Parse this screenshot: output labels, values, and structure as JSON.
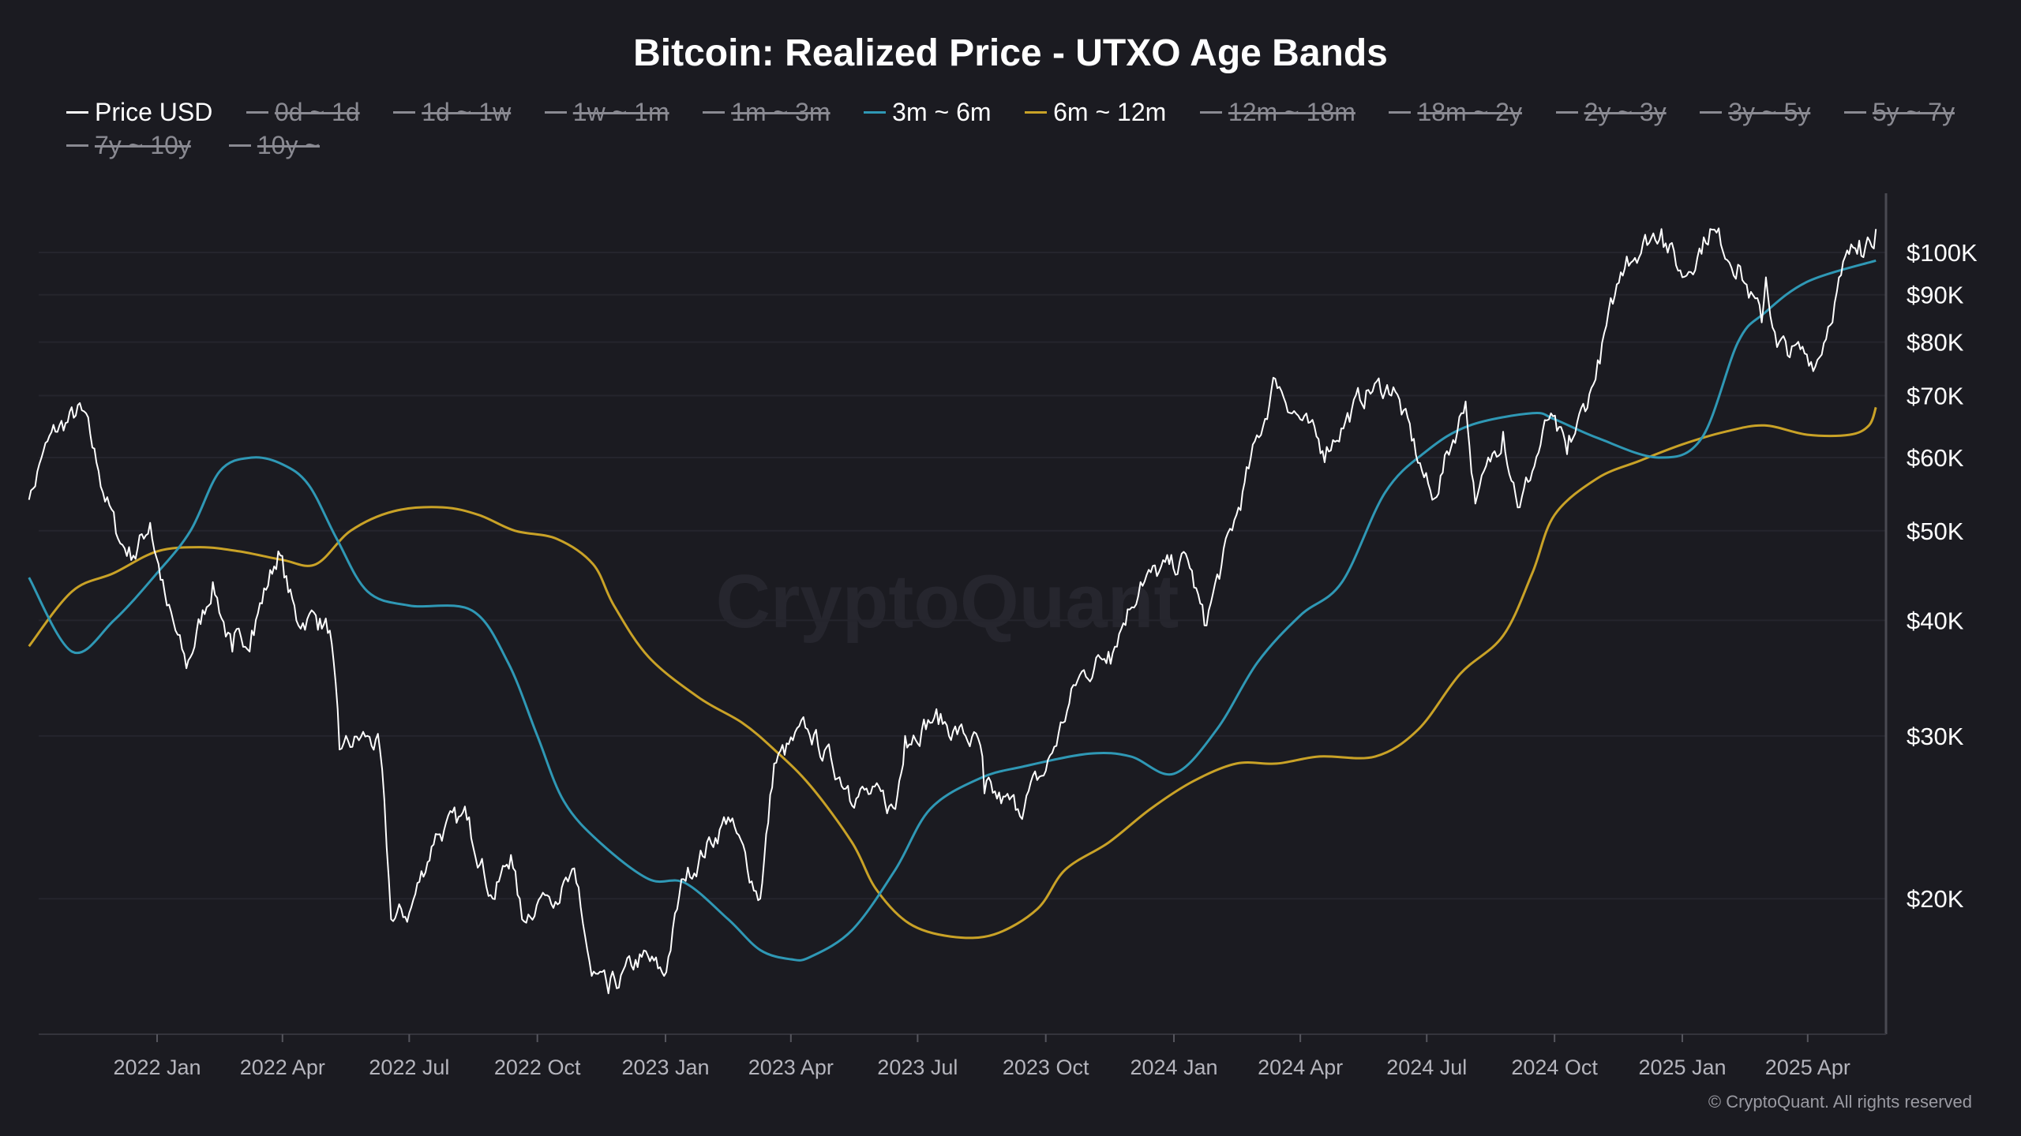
{
  "title": "Bitcoin: Realized Price - UTXO Age Bands",
  "legend": [
    {
      "label": "Price USD",
      "active": true,
      "color": "#ffffff"
    },
    {
      "label": "0d ~ 1d",
      "active": false
    },
    {
      "label": "1d ~ 1w",
      "active": false
    },
    {
      "label": "1w ~ 1m",
      "active": false
    },
    {
      "label": "1m ~ 3m",
      "active": false
    },
    {
      "label": "3m ~ 6m",
      "active": true,
      "color": "#2f98b5"
    },
    {
      "label": "6m ~ 12m",
      "active": true,
      "color": "#c9a227"
    },
    {
      "label": "12m ~ 18m",
      "active": false
    },
    {
      "label": "18m ~ 2y",
      "active": false
    },
    {
      "label": "2y ~ 3y",
      "active": false
    },
    {
      "label": "3y ~ 5y",
      "active": false
    },
    {
      "label": "5y ~ 7y",
      "active": false
    },
    {
      "label": "7y ~ 10y",
      "active": false
    },
    {
      "label": "10y ~",
      "active": false
    }
  ],
  "watermark": "CryptoQuant",
  "copyright": "© CryptoQuant. All rights reserved",
  "chart_data": {
    "type": "line",
    "title": "Bitcoin: Realized Price - UTXO Age Bands",
    "y_scale": "log",
    "ylim": [
      14300,
      116000
    ],
    "xlim": [
      "2021-10-01",
      "2025-05-20"
    ],
    "grid": true,
    "legend_position": "top",
    "y_ticks": [
      {
        "value": 100000,
        "label": "$100K"
      },
      {
        "value": 90000,
        "label": "$90K"
      },
      {
        "value": 80000,
        "label": "$80K"
      },
      {
        "value": 70000,
        "label": "$70K"
      },
      {
        "value": 60000,
        "label": "$60K"
      },
      {
        "value": 50000,
        "label": "$50K"
      },
      {
        "value": 40000,
        "label": "$40K"
      },
      {
        "value": 30000,
        "label": "$30K"
      },
      {
        "value": 20000,
        "label": "$20K"
      }
    ],
    "x_ticks": [
      {
        "date": "2022-01-01",
        "label": "2022 Jan"
      },
      {
        "date": "2022-04-01",
        "label": "2022 Apr"
      },
      {
        "date": "2022-07-01",
        "label": "2022 Jul"
      },
      {
        "date": "2022-10-01",
        "label": "2022 Oct"
      },
      {
        "date": "2023-01-01",
        "label": "2023 Jan"
      },
      {
        "date": "2023-04-01",
        "label": "2023 Apr"
      },
      {
        "date": "2023-07-01",
        "label": "2023 Jul"
      },
      {
        "date": "2023-10-01",
        "label": "2023 Oct"
      },
      {
        "date": "2024-01-01",
        "label": "2024 Jan"
      },
      {
        "date": "2024-04-01",
        "label": "2024 Apr"
      },
      {
        "date": "2024-07-01",
        "label": "2024 Jul"
      },
      {
        "date": "2024-10-01",
        "label": "2024 Oct"
      },
      {
        "date": "2025-01-01",
        "label": "2025 Jan"
      },
      {
        "date": "2025-04-01",
        "label": "2025 Apr"
      }
    ],
    "series": [
      {
        "name": "Price USD",
        "color": "#ffffff",
        "points": [
          [
            "2021-10-01",
            54000
          ],
          [
            "2021-10-10",
            60000
          ],
          [
            "2021-10-20",
            64000
          ],
          [
            "2021-11-08",
            67500
          ],
          [
            "2021-11-20",
            58000
          ],
          [
            "2021-12-04",
            49000
          ],
          [
            "2021-12-15",
            47000
          ],
          [
            "2021-12-27",
            51000
          ],
          [
            "2022-01-08",
            41500
          ],
          [
            "2022-01-22",
            35500
          ],
          [
            "2022-02-10",
            44000
          ],
          [
            "2022-02-24",
            37000
          ],
          [
            "2022-03-10",
            39000
          ],
          [
            "2022-03-29",
            47500
          ],
          [
            "2022-04-11",
            40000
          ],
          [
            "2022-04-25",
            40500
          ],
          [
            "2022-05-05",
            39000
          ],
          [
            "2022-05-12",
            29000
          ],
          [
            "2022-06-01",
            30000
          ],
          [
            "2022-06-10",
            29000
          ],
          [
            "2022-06-18",
            19000
          ],
          [
            "2022-07-01",
            19300
          ],
          [
            "2022-07-20",
            23500
          ],
          [
            "2022-08-13",
            24500
          ],
          [
            "2022-08-30",
            20000
          ],
          [
            "2022-09-12",
            22300
          ],
          [
            "2022-09-20",
            19000
          ],
          [
            "2022-10-05",
            20300
          ],
          [
            "2022-10-29",
            20800
          ],
          [
            "2022-11-09",
            16500
          ],
          [
            "2022-11-21",
            15800
          ],
          [
            "2022-12-15",
            17300
          ],
          [
            "2022-12-31",
            16500
          ],
          [
            "2023-01-14",
            21000
          ],
          [
            "2023-02-15",
            24500
          ],
          [
            "2023-03-10",
            20000
          ],
          [
            "2023-03-20",
            28000
          ],
          [
            "2023-04-13",
            30500
          ],
          [
            "2023-05-12",
            26500
          ],
          [
            "2023-06-15",
            25000
          ],
          [
            "2023-06-22",
            30000
          ],
          [
            "2023-07-13",
            31400
          ],
          [
            "2023-08-15",
            29300
          ],
          [
            "2023-08-18",
            26000
          ],
          [
            "2023-09-11",
            25000
          ],
          [
            "2023-10-01",
            27500
          ],
          [
            "2023-10-24",
            34500
          ],
          [
            "2023-11-15",
            37000
          ],
          [
            "2023-12-08",
            44000
          ],
          [
            "2024-01-11",
            46500
          ],
          [
            "2024-01-23",
            39500
          ],
          [
            "2024-02-15",
            52000
          ],
          [
            "2024-03-14",
            73000
          ],
          [
            "2024-04-01",
            66000
          ],
          [
            "2024-04-17",
            61000
          ],
          [
            "2024-05-20",
            71000
          ],
          [
            "2024-06-07",
            71500
          ],
          [
            "2024-07-05",
            54000
          ],
          [
            "2024-07-29",
            69000
          ],
          [
            "2024-08-05",
            53500
          ],
          [
            "2024-08-25",
            64000
          ],
          [
            "2024-09-06",
            53000
          ],
          [
            "2024-09-27",
            66000
          ],
          [
            "2024-10-10",
            60500
          ],
          [
            "2024-10-29",
            72000
          ],
          [
            "2024-11-12",
            88000
          ],
          [
            "2024-11-22",
            99000
          ],
          [
            "2024-12-17",
            106000
          ],
          [
            "2025-01-01",
            94000
          ],
          [
            "2025-01-21",
            106000
          ],
          [
            "2025-02-10",
            97000
          ],
          [
            "2025-02-27",
            84000
          ],
          [
            "2025-03-02",
            94000
          ],
          [
            "2025-03-10",
            79000
          ],
          [
            "2025-04-08",
            76500
          ],
          [
            "2025-04-25",
            94500
          ],
          [
            "2025-05-08",
            103000
          ],
          [
            "2025-05-20",
            106000
          ]
        ]
      },
      {
        "name": "3m ~ 6m",
        "color": "#2f98b5",
        "points": [
          [
            "2021-10-01",
            44500
          ],
          [
            "2021-11-01",
            37000
          ],
          [
            "2021-12-01",
            40000
          ],
          [
            "2022-01-01",
            45000
          ],
          [
            "2022-01-25",
            50000
          ],
          [
            "2022-02-15",
            58000
          ],
          [
            "2022-03-10",
            60000
          ],
          [
            "2022-04-01",
            59000
          ],
          [
            "2022-04-20",
            56000
          ],
          [
            "2022-05-10",
            49000
          ],
          [
            "2022-06-01",
            43000
          ],
          [
            "2022-07-01",
            41500
          ],
          [
            "2022-08-15",
            41000
          ],
          [
            "2022-09-10",
            36000
          ],
          [
            "2022-10-01",
            30000
          ],
          [
            "2022-10-20",
            25500
          ],
          [
            "2022-11-15",
            23000
          ],
          [
            "2022-12-20",
            21000
          ],
          [
            "2023-01-15",
            20800
          ],
          [
            "2023-02-15",
            19000
          ],
          [
            "2023-03-10",
            17600
          ],
          [
            "2023-04-01",
            17200
          ],
          [
            "2023-04-15",
            17300
          ],
          [
            "2023-05-15",
            18500
          ],
          [
            "2023-06-15",
            21500
          ],
          [
            "2023-07-10",
            25000
          ],
          [
            "2023-08-15",
            27000
          ],
          [
            "2023-09-15",
            27800
          ],
          [
            "2023-11-01",
            28700
          ],
          [
            "2023-12-01",
            28500
          ],
          [
            "2024-01-01",
            27300
          ],
          [
            "2024-02-01",
            30500
          ],
          [
            "2024-03-01",
            36000
          ],
          [
            "2024-04-01",
            40500
          ],
          [
            "2024-05-01",
            44000
          ],
          [
            "2024-06-01",
            55000
          ],
          [
            "2024-07-01",
            61000
          ],
          [
            "2024-08-01",
            65000
          ],
          [
            "2024-09-15",
            67000
          ],
          [
            "2024-10-01",
            66000
          ],
          [
            "2024-11-01",
            63000
          ],
          [
            "2024-12-15",
            60000
          ],
          [
            "2025-01-15",
            63000
          ],
          [
            "2025-02-10",
            80000
          ],
          [
            "2025-03-01",
            86000
          ],
          [
            "2025-04-01",
            93000
          ],
          [
            "2025-05-20",
            98000
          ]
        ]
      },
      {
        "name": "6m ~ 12m",
        "color": "#c9a227",
        "points": [
          [
            "2021-10-01",
            37500
          ],
          [
            "2021-11-01",
            43000
          ],
          [
            "2021-12-01",
            45000
          ],
          [
            "2022-01-01",
            47500
          ],
          [
            "2022-02-01",
            48000
          ],
          [
            "2022-03-01",
            47500
          ],
          [
            "2022-04-01",
            46500
          ],
          [
            "2022-04-25",
            46000
          ],
          [
            "2022-05-20",
            50000
          ],
          [
            "2022-06-20",
            52500
          ],
          [
            "2022-07-25",
            53000
          ],
          [
            "2022-08-20",
            52000
          ],
          [
            "2022-09-15",
            50000
          ],
          [
            "2022-10-15",
            49000
          ],
          [
            "2022-11-10",
            46000
          ],
          [
            "2022-11-25",
            41500
          ],
          [
            "2022-12-20",
            36500
          ],
          [
            "2023-01-25",
            33000
          ],
          [
            "2023-02-25",
            31000
          ],
          [
            "2023-03-20",
            29000
          ],
          [
            "2023-04-15",
            26500
          ],
          [
            "2023-05-15",
            23000
          ],
          [
            "2023-06-01",
            20500
          ],
          [
            "2023-06-25",
            18800
          ],
          [
            "2023-07-25",
            18200
          ],
          [
            "2023-08-25",
            18300
          ],
          [
            "2023-09-25",
            19500
          ],
          [
            "2023-10-15",
            21500
          ],
          [
            "2023-11-15",
            23000
          ],
          [
            "2023-12-15",
            25000
          ],
          [
            "2024-01-15",
            26800
          ],
          [
            "2024-02-15",
            28000
          ],
          [
            "2024-03-15",
            28000
          ],
          [
            "2024-04-15",
            28500
          ],
          [
            "2024-05-25",
            28500
          ],
          [
            "2024-06-25",
            30500
          ],
          [
            "2024-07-25",
            35000
          ],
          [
            "2024-08-25",
            38500
          ],
          [
            "2024-09-15",
            45000
          ],
          [
            "2024-10-01",
            52000
          ],
          [
            "2024-11-01",
            57000
          ],
          [
            "2024-12-01",
            59500
          ],
          [
            "2025-01-01",
            62000
          ],
          [
            "2025-02-01",
            64000
          ],
          [
            "2025-03-01",
            65000
          ],
          [
            "2025-04-01",
            63500
          ],
          [
            "2025-05-01",
            63500
          ],
          [
            "2025-05-15",
            65000
          ],
          [
            "2025-05-20",
            68000
          ]
        ]
      }
    ]
  }
}
